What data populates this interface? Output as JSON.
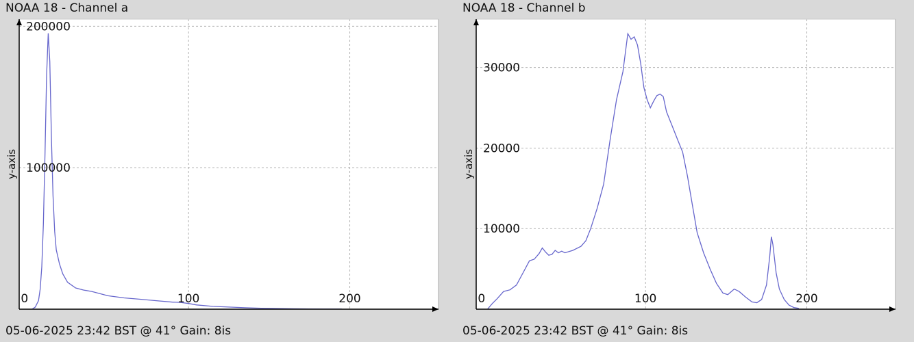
{
  "charts": [
    {
      "title": "NOAA 18 - Channel a",
      "footer": "05-06-2025 23:42 BST @ 41° Gain: 8is",
      "chart_data": {
        "type": "line",
        "title": "NOAA 18 - Channel a",
        "xlabel": "",
        "ylabel": "y-axis",
        "xlim": [
          -5,
          255
        ],
        "ylim": [
          0,
          205000
        ],
        "x_ticks": [
          0,
          100,
          200
        ],
        "y_ticks": [
          100000,
          200000
        ],
        "grid": true,
        "series": [
          {
            "color": "#6666cc",
            "points": [
              [
                3,
                0
              ],
              [
                5,
                1500
              ],
              [
                7,
                6000
              ],
              [
                8,
                14000
              ],
              [
                9,
                30000
              ],
              [
                10,
                60000
              ],
              [
                11,
                110000
              ],
              [
                12,
                165000
              ],
              [
                13,
                195000
              ],
              [
                14,
                175000
              ],
              [
                15,
                120000
              ],
              [
                16,
                80000
              ],
              [
                17,
                55000
              ],
              [
                18,
                42000
              ],
              [
                20,
                32000
              ],
              [
                22,
                25000
              ],
              [
                25,
                19000
              ],
              [
                30,
                15000
              ],
              [
                35,
                13500
              ],
              [
                40,
                12500
              ],
              [
                45,
                11000
              ],
              [
                50,
                9500
              ],
              [
                60,
                8000
              ],
              [
                70,
                7000
              ],
              [
                80,
                6000
              ],
              [
                90,
                5000
              ],
              [
                95,
                4800
              ],
              [
                100,
                4000
              ],
              [
                105,
                3000
              ],
              [
                115,
                2000
              ],
              [
                125,
                1500
              ],
              [
                135,
                1000
              ],
              [
                145,
                700
              ],
              [
                155,
                500
              ],
              [
                165,
                300
              ],
              [
                175,
                200
              ],
              [
                185,
                100
              ],
              [
                195,
                80
              ]
            ]
          }
        ]
      }
    },
    {
      "title": "NOAA 18 - Channel b",
      "footer": "05-06-2025 23:42 BST @ 41° Gain: 8is",
      "chart_data": {
        "type": "line",
        "title": "NOAA 18 - Channel b",
        "xlabel": "",
        "ylabel": "y-axis",
        "xlim": [
          -5,
          255
        ],
        "ylim": [
          0,
          36000
        ],
        "x_ticks": [
          0,
          100,
          200
        ],
        "y_ticks": [
          10000,
          20000,
          30000
        ],
        "grid": true,
        "series": [
          {
            "color": "#6666cc",
            "points": [
              [
                2,
                0
              ],
              [
                5,
                700
              ],
              [
                8,
                1300
              ],
              [
                12,
                2200
              ],
              [
                16,
                2400
              ],
              [
                20,
                3000
              ],
              [
                24,
                4500
              ],
              [
                28,
                6000
              ],
              [
                31,
                6200
              ],
              [
                34,
                6900
              ],
              [
                36,
                7600
              ],
              [
                38,
                7100
              ],
              [
                40,
                6700
              ],
              [
                42,
                6800
              ],
              [
                44,
                7300
              ],
              [
                46,
                7000
              ],
              [
                48,
                7200
              ],
              [
                50,
                7000
              ],
              [
                55,
                7300
              ],
              [
                60,
                7800
              ],
              [
                63,
                8500
              ],
              [
                66,
                10000
              ],
              [
                70,
                12500
              ],
              [
                74,
                15500
              ],
              [
                78,
                21000
              ],
              [
                82,
                26000
              ],
              [
                86,
                29500
              ],
              [
                89,
                34200
              ],
              [
                91,
                33500
              ],
              [
                93,
                33800
              ],
              [
                95,
                32800
              ],
              [
                97,
                30500
              ],
              [
                99,
                27500
              ],
              [
                101,
                26000
              ],
              [
                103,
                25000
              ],
              [
                105,
                25800
              ],
              [
                107,
                26500
              ],
              [
                109,
                26700
              ],
              [
                111,
                26400
              ],
              [
                113,
                24500
              ],
              [
                115,
                23500
              ],
              [
                117,
                22500
              ],
              [
                120,
                21000
              ],
              [
                123,
                19500
              ],
              [
                126,
                16500
              ],
              [
                129,
                13000
              ],
              [
                132,
                9500
              ],
              [
                136,
                7000
              ],
              [
                140,
                5000
              ],
              [
                144,
                3200
              ],
              [
                148,
                2000
              ],
              [
                151,
                1800
              ],
              [
                155,
                2500
              ],
              [
                158,
                2200
              ],
              [
                162,
                1500
              ],
              [
                166,
                900
              ],
              [
                169,
                800
              ],
              [
                172,
                1200
              ],
              [
                175,
                3000
              ],
              [
                177,
                6500
              ],
              [
                178,
                9000
              ],
              [
                179,
                8000
              ],
              [
                181,
                4500
              ],
              [
                183,
                2500
              ],
              [
                186,
                1200
              ],
              [
                189,
                500
              ],
              [
                192,
                200
              ],
              [
                195,
                100
              ]
            ]
          }
        ]
      }
    }
  ]
}
